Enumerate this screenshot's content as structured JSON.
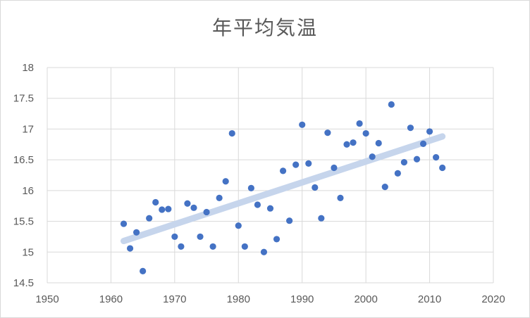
{
  "chart_data": {
    "type": "scatter",
    "title": "年平均気温",
    "xlabel": "",
    "ylabel": "",
    "xlim": [
      1950,
      2020
    ],
    "ylim": [
      14.5,
      18
    ],
    "xticks": [
      1950,
      1960,
      1970,
      1980,
      1990,
      2000,
      2010,
      2020
    ],
    "yticks": [
      14.5,
      15,
      15.5,
      16,
      16.5,
      17,
      17.5,
      18
    ],
    "grid": "vertical and horizontal major gridlines",
    "legend": "none",
    "point_color": "#4472c4",
    "trendline": {
      "type": "linear",
      "color": "#c6d5ec",
      "from": [
        1962,
        15.18
      ],
      "to": [
        2012,
        16.88
      ]
    },
    "series": [
      {
        "points": [
          [
            1962,
            15.46
          ],
          [
            1963,
            15.06
          ],
          [
            1964,
            15.32
          ],
          [
            1965,
            14.69
          ],
          [
            1966,
            15.55
          ],
          [
            1967,
            15.81
          ],
          [
            1968,
            15.69
          ],
          [
            1969,
            15.7
          ],
          [
            1970,
            15.25
          ],
          [
            1971,
            15.09
          ],
          [
            1972,
            15.79
          ],
          [
            1973,
            15.72
          ],
          [
            1974,
            15.25
          ],
          [
            1975,
            15.65
          ],
          [
            1976,
            15.09
          ],
          [
            1977,
            15.88
          ],
          [
            1978,
            16.15
          ],
          [
            1979,
            16.93
          ],
          [
            1980,
            15.43
          ],
          [
            1981,
            15.09
          ],
          [
            1982,
            16.04
          ],
          [
            1983,
            15.77
          ],
          [
            1984,
            15.0
          ],
          [
            1985,
            15.71
          ],
          [
            1986,
            15.21
          ],
          [
            1987,
            16.32
          ],
          [
            1988,
            15.51
          ],
          [
            1989,
            16.42
          ],
          [
            1990,
            17.07
          ],
          [
            1991,
            16.44
          ],
          [
            1992,
            16.05
          ],
          [
            1993,
            15.55
          ],
          [
            1994,
            16.94
          ],
          [
            1995,
            16.37
          ],
          [
            1996,
            15.88
          ],
          [
            1997,
            16.75
          ],
          [
            1998,
            16.78
          ],
          [
            1999,
            17.09
          ],
          [
            2000,
            16.93
          ],
          [
            2001,
            16.55
          ],
          [
            2002,
            16.77
          ],
          [
            2003,
            16.06
          ],
          [
            2004,
            17.4
          ],
          [
            2005,
            16.28
          ],
          [
            2006,
            16.46
          ],
          [
            2007,
            17.02
          ],
          [
            2008,
            16.51
          ],
          [
            2009,
            16.76
          ],
          [
            2010,
            16.96
          ],
          [
            2011,
            16.54
          ],
          [
            2012,
            16.37
          ]
        ]
      }
    ]
  }
}
